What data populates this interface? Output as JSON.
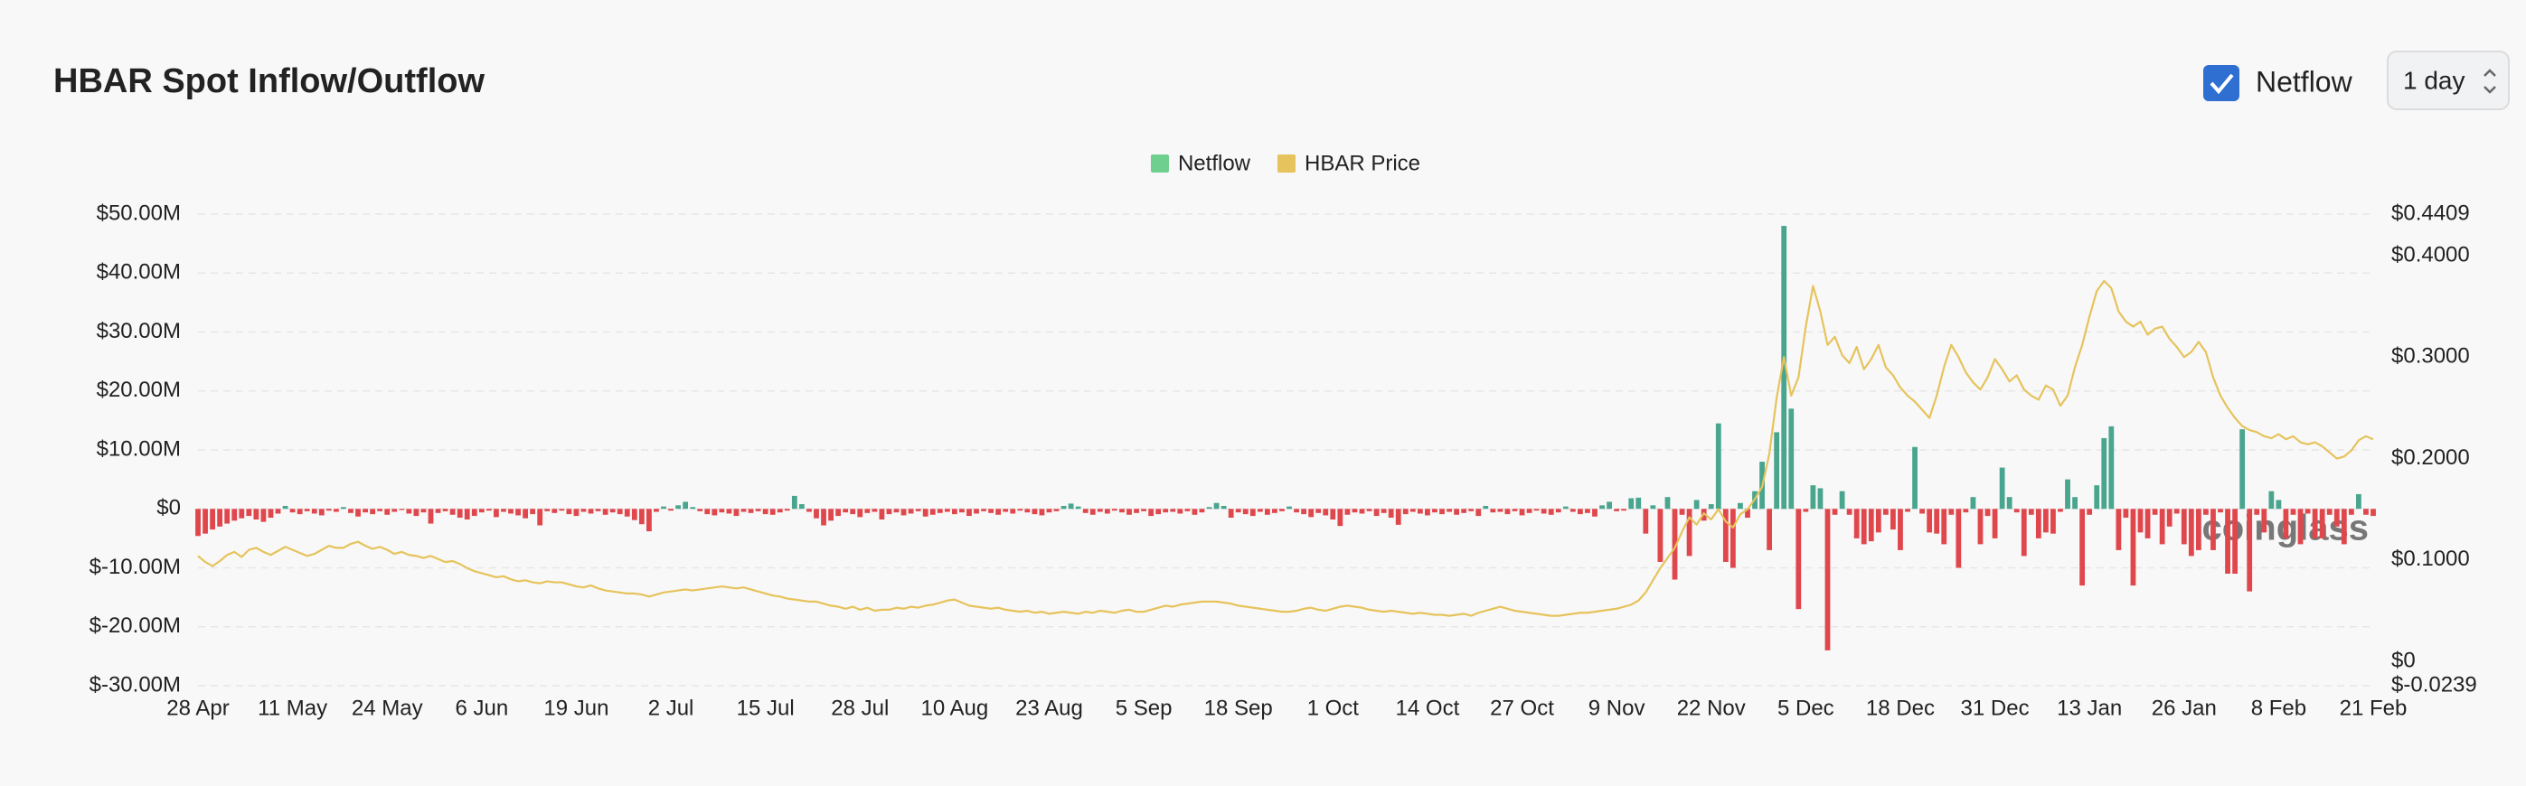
{
  "controls": {
    "checkbox_label": "Netflow",
    "checked": true,
    "interval": "1 day"
  },
  "chart_data": {
    "type": "bar_line",
    "title": "HBAR Spot Inflow/Outflow",
    "legend": "top",
    "grid": true,
    "watermark": "coinglass",
    "ylim": [
      -30,
      50
    ],
    "yticks": [
      {
        "value": 50,
        "label": "$50.00M"
      },
      {
        "value": 40,
        "label": "$40.00M"
      },
      {
        "value": 30,
        "label": "$30.00M"
      },
      {
        "value": 20,
        "label": "$20.00M"
      },
      {
        "value": 10,
        "label": "$10.00M"
      },
      {
        "value": 0,
        "label": "$0"
      },
      {
        "value": -10,
        "label": "$-10.00M"
      },
      {
        "value": -20,
        "label": "$-20.00M"
      },
      {
        "value": -30,
        "label": "$-30.00M"
      }
    ],
    "y2lim": [
      -0.0239,
      0.4409
    ],
    "y2ticks": [
      {
        "value": 0.4409,
        "label": "$0.4409"
      },
      {
        "value": 0.4,
        "label": "$0.4000"
      },
      {
        "value": 0.3,
        "label": "$0.3000"
      },
      {
        "value": 0.2,
        "label": "$0.2000"
      },
      {
        "value": 0.1,
        "label": "$0.1000"
      },
      {
        "value": 0,
        "label": "$0"
      },
      {
        "value": -0.0239,
        "label": "$-0.0239"
      }
    ],
    "categories": [
      "28 Apr",
      null,
      null,
      null,
      null,
      null,
      null,
      null,
      null,
      null,
      null,
      null,
      null,
      "11 May",
      null,
      null,
      null,
      null,
      null,
      null,
      null,
      null,
      null,
      null,
      null,
      null,
      "24 May",
      null,
      null,
      null,
      null,
      null,
      null,
      null,
      null,
      null,
      null,
      null,
      null,
      "6 Jun",
      null,
      null,
      null,
      null,
      null,
      null,
      null,
      null,
      null,
      null,
      null,
      null,
      "19 Jun",
      null,
      null,
      null,
      null,
      null,
      null,
      null,
      null,
      null,
      null,
      null,
      null,
      "2 Jul",
      null,
      null,
      null,
      null,
      null,
      null,
      null,
      null,
      null,
      null,
      null,
      null,
      "15 Jul",
      null,
      null,
      null,
      null,
      null,
      null,
      null,
      null,
      null,
      null,
      null,
      null,
      "28 Jul",
      null,
      null,
      null,
      null,
      null,
      null,
      null,
      null,
      null,
      null,
      null,
      null,
      "10 Aug",
      null,
      null,
      null,
      null,
      null,
      null,
      null,
      null,
      null,
      null,
      null,
      null,
      "23 Aug",
      null,
      null,
      null,
      null,
      null,
      null,
      null,
      null,
      null,
      null,
      null,
      null,
      "5 Sep",
      null,
      null,
      null,
      null,
      null,
      null,
      null,
      null,
      null,
      null,
      null,
      null,
      "18 Sep",
      null,
      null,
      null,
      null,
      null,
      null,
      null,
      null,
      null,
      null,
      null,
      null,
      "1 Oct",
      null,
      null,
      null,
      null,
      null,
      null,
      null,
      null,
      null,
      null,
      null,
      null,
      "14 Oct",
      null,
      null,
      null,
      null,
      null,
      null,
      null,
      null,
      null,
      null,
      null,
      null,
      "27 Oct",
      null,
      null,
      null,
      null,
      null,
      null,
      null,
      null,
      null,
      null,
      null,
      null,
      "9 Nov",
      null,
      null,
      null,
      null,
      null,
      null,
      null,
      null,
      null,
      null,
      null,
      null,
      "22 Nov",
      null,
      null,
      null,
      null,
      null,
      null,
      null,
      null,
      null,
      null,
      null,
      null,
      "5 Dec",
      null,
      null,
      null,
      null,
      null,
      null,
      null,
      null,
      null,
      null,
      null,
      null,
      "18 Dec",
      null,
      null,
      null,
      null,
      null,
      null,
      null,
      null,
      null,
      null,
      null,
      null,
      "31 Dec",
      null,
      null,
      null,
      null,
      null,
      null,
      null,
      null,
      null,
      null,
      null,
      null,
      "13 Jan",
      null,
      null,
      null,
      null,
      null,
      null,
      null,
      null,
      null,
      null,
      null,
      null,
      "26 Jan",
      null,
      null,
      null,
      null,
      null,
      null,
      null,
      null,
      null,
      null,
      null,
      null,
      "8 Feb",
      null,
      null,
      null,
      null,
      null,
      null,
      null,
      null,
      null,
      null,
      null,
      null,
      "21 Feb"
    ],
    "series": [
      {
        "name": "Netflow",
        "color": "#6fcf8f",
        "positive_color": "#4aa58e",
        "negative_color": "#e0474c",
        "values": [
          -4.6,
          -4.2,
          -3.5,
          -3.0,
          -2.5,
          -2.0,
          -1.6,
          -1.2,
          -1.8,
          -2.2,
          -1.5,
          -0.8,
          0.5,
          -0.6,
          -0.9,
          -0.4,
          -0.8,
          -1.1,
          -0.3,
          -0.5,
          0.3,
          -0.7,
          -1.3,
          -0.6,
          -0.9,
          -0.4,
          -1.0,
          -0.5,
          -0.2,
          -0.8,
          -1.2,
          -0.6,
          -2.5,
          -0.7,
          -0.4,
          -1.0,
          -1.5,
          -1.8,
          -1.2,
          -0.6,
          -0.3,
          -1.4,
          -0.5,
          -0.8,
          -1.1,
          -1.6,
          -0.9,
          -2.8,
          -0.4,
          -0.7,
          -0.3,
          -0.9,
          -1.2,
          -0.5,
          -0.8,
          -0.4,
          -1.0,
          -0.6,
          -0.9,
          -1.3,
          -1.9,
          -2.6,
          -3.8,
          -0.5,
          0.4,
          -0.3,
          0.6,
          1.2,
          0.3,
          -0.4,
          -0.9,
          -1.1,
          -0.6,
          -0.8,
          -1.2,
          -0.5,
          -0.7,
          -0.4,
          -0.9,
          -1.0,
          -0.6,
          -0.3,
          2.2,
          0.8,
          -0.5,
          -1.6,
          -2.8,
          -2.0,
          -1.2,
          -0.6,
          -0.9,
          -1.4,
          -0.7,
          -0.5,
          -1.8,
          -0.9,
          -0.6,
          -1.1,
          -0.8,
          -0.4,
          -1.3,
          -1.0,
          -0.7,
          -0.5,
          -0.9,
          -0.6,
          -1.2,
          -0.8,
          -0.4,
          -0.7,
          -1.0,
          -0.5,
          -0.8,
          -0.3,
          -0.6,
          -0.9,
          -1.1,
          -0.6,
          -0.4,
          0.5,
          0.9,
          0.4,
          -0.7,
          -1.0,
          -0.5,
          -0.8,
          -0.3,
          -0.6,
          -1.0,
          -0.7,
          -0.4,
          -1.2,
          -0.9,
          -0.6,
          -0.5,
          -0.8,
          -0.4,
          -1.0,
          -0.6,
          0.3,
          1.0,
          0.5,
          -1.5,
          -0.6,
          -0.9,
          -1.2,
          -0.5,
          -1.0,
          -0.7,
          -0.4,
          0.4,
          -0.6,
          -0.9,
          -1.4,
          -0.7,
          -1.1,
          -1.8,
          -2.9,
          -1.0,
          -0.6,
          -0.8,
          -0.4,
          -1.2,
          -0.7,
          -1.5,
          -2.7,
          -0.9,
          -0.5,
          -0.8,
          -1.1,
          -0.6,
          -0.9,
          -0.5,
          -1.0,
          -0.7,
          -0.4,
          -1.2,
          0.5,
          -0.6,
          -0.5,
          -0.9,
          -0.4,
          -1.1,
          -0.7,
          -0.3,
          -0.8,
          -1.0,
          -0.6,
          0.4,
          -0.5,
          -0.9,
          -0.7,
          -1.3,
          0.6,
          1.2,
          -0.4,
          -0.3,
          1.8,
          1.9,
          -4.2,
          0.6,
          -9.0,
          2.0,
          -12.0,
          -1.0,
          -8.0,
          1.5,
          -2.0,
          0.8,
          14.5,
          -9.0,
          -10.0,
          1.0,
          -1.5,
          3.0,
          8.0,
          -7.0,
          13.0,
          48.0,
          17.0,
          -17.0,
          -0.5,
          4.0,
          3.5,
          -24.0,
          -1.0,
          3.0,
          -1.0,
          -5.0,
          -6.0,
          -5.5,
          -4.0,
          -1.0,
          -3.5,
          -7.0,
          -0.5,
          10.5,
          -0.8,
          -4.0,
          -4.2,
          -6.0,
          -1.0,
          -10.0,
          -0.6,
          2.0,
          -6.0,
          -1.2,
          -5.0,
          7.0,
          2.0,
          -0.6,
          -8.0,
          -1.0,
          -5.0,
          -4.0,
          -4.2,
          -0.5,
          5.0,
          2.0,
          -13.0,
          -1.0,
          4.0,
          12.0,
          14.0,
          -7.0,
          -1.5,
          -13.0,
          -4.0,
          -5.0,
          -1.0,
          -6.0,
          -3.0,
          -0.8,
          -6.0,
          -8.0,
          -7.0,
          -1.0,
          -7.0,
          -0.6,
          -11.0,
          -11.0,
          13.5,
          -14.0,
          -1.0,
          -4.0,
          3.0,
          1.5,
          -5.0,
          -1.0,
          -6.0,
          -0.8,
          -5.0,
          -5.0,
          -1.0,
          -3.0,
          -6.0,
          -1.0,
          2.5,
          -1.0,
          -1.2
        ]
      },
      {
        "name": "HBAR Price",
        "color": "#e6c35c",
        "axis": "y2",
        "values": [
          0.104,
          0.098,
          0.094,
          0.099,
          0.105,
          0.108,
          0.103,
          0.11,
          0.112,
          0.108,
          0.105,
          0.109,
          0.113,
          0.11,
          0.107,
          0.104,
          0.106,
          0.11,
          0.114,
          0.112,
          0.112,
          0.116,
          0.118,
          0.114,
          0.111,
          0.113,
          0.11,
          0.106,
          0.108,
          0.105,
          0.104,
          0.102,
          0.104,
          0.101,
          0.098,
          0.099,
          0.096,
          0.092,
          0.089,
          0.087,
          0.085,
          0.083,
          0.084,
          0.081,
          0.079,
          0.08,
          0.078,
          0.077,
          0.079,
          0.078,
          0.078,
          0.076,
          0.074,
          0.073,
          0.075,
          0.072,
          0.07,
          0.069,
          0.068,
          0.067,
          0.067,
          0.066,
          0.064,
          0.066,
          0.068,
          0.069,
          0.07,
          0.071,
          0.07,
          0.071,
          0.072,
          0.073,
          0.074,
          0.073,
          0.072,
          0.073,
          0.071,
          0.069,
          0.067,
          0.065,
          0.064,
          0.062,
          0.061,
          0.06,
          0.059,
          0.059,
          0.057,
          0.055,
          0.054,
          0.052,
          0.054,
          0.051,
          0.053,
          0.05,
          0.051,
          0.051,
          0.053,
          0.052,
          0.054,
          0.053,
          0.055,
          0.056,
          0.058,
          0.06,
          0.061,
          0.058,
          0.055,
          0.054,
          0.053,
          0.052,
          0.053,
          0.051,
          0.05,
          0.049,
          0.05,
          0.048,
          0.049,
          0.047,
          0.048,
          0.049,
          0.048,
          0.047,
          0.049,
          0.048,
          0.05,
          0.049,
          0.048,
          0.05,
          0.051,
          0.049,
          0.049,
          0.051,
          0.053,
          0.055,
          0.054,
          0.056,
          0.057,
          0.058,
          0.059,
          0.059,
          0.059,
          0.058,
          0.057,
          0.055,
          0.054,
          0.053,
          0.052,
          0.051,
          0.05,
          0.049,
          0.049,
          0.05,
          0.052,
          0.053,
          0.051,
          0.05,
          0.052,
          0.054,
          0.055,
          0.054,
          0.053,
          0.051,
          0.05,
          0.049,
          0.05,
          0.049,
          0.048,
          0.047,
          0.048,
          0.047,
          0.046,
          0.046,
          0.045,
          0.046,
          0.047,
          0.045,
          0.048,
          0.05,
          0.052,
          0.054,
          0.052,
          0.05,
          0.049,
          0.048,
          0.047,
          0.046,
          0.045,
          0.045,
          0.046,
          0.047,
          0.048,
          0.048,
          0.049,
          0.05,
          0.051,
          0.052,
          0.054,
          0.056,
          0.06,
          0.068,
          0.08,
          0.092,
          0.102,
          0.112,
          0.128,
          0.142,
          0.135,
          0.146,
          0.14,
          0.15,
          0.138,
          0.132,
          0.145,
          0.15,
          0.16,
          0.172,
          0.205,
          0.26,
          0.3,
          0.262,
          0.28,
          0.33,
          0.37,
          0.345,
          0.312,
          0.32,
          0.302,
          0.294,
          0.31,
          0.288,
          0.298,
          0.312,
          0.29,
          0.282,
          0.27,
          0.262,
          0.256,
          0.248,
          0.24,
          0.262,
          0.29,
          0.312,
          0.3,
          0.285,
          0.275,
          0.268,
          0.28,
          0.298,
          0.288,
          0.276,
          0.282,
          0.268,
          0.262,
          0.258,
          0.272,
          0.268,
          0.252,
          0.262,
          0.29,
          0.312,
          0.34,
          0.365,
          0.375,
          0.368,
          0.345,
          0.335,
          0.33,
          0.335,
          0.322,
          0.328,
          0.33,
          0.318,
          0.31,
          0.3,
          0.305,
          0.315,
          0.305,
          0.28,
          0.262,
          0.25,
          0.24,
          0.232,
          0.228,
          0.226,
          0.222,
          0.22,
          0.224,
          0.219,
          0.222,
          0.216,
          0.214,
          0.216,
          0.212,
          0.206,
          0.2,
          0.202,
          0.208,
          0.218,
          0.222,
          0.219
        ]
      }
    ]
  }
}
